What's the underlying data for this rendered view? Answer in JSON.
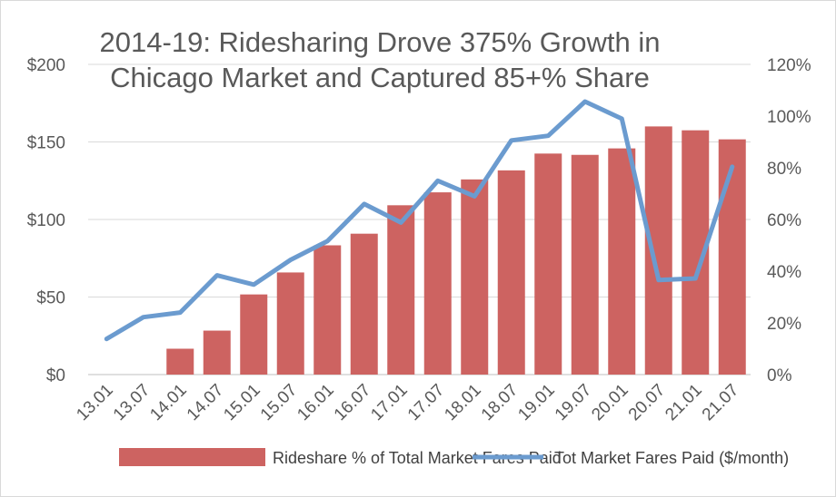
{
  "chart_data": {
    "type": "bar",
    "title": "2014-19: Ridesharing Drove 375% Growth in Chicago Market and Captured 85+% Share",
    "title_lines": [
      "2014-19: Ridesharing Drove 375% Growth in",
      "Chicago Market and Captured 85+% Share"
    ],
    "categories": [
      "13.01",
      "13.07",
      "14.01",
      "14.07",
      "15.01",
      "15.07",
      "16.01",
      "16.07",
      "17.01",
      "17.07",
      "18.01",
      "18.07",
      "19.01",
      "19.07",
      "20.01",
      "20.07",
      "21.01",
      "21.07"
    ],
    "y_left": {
      "ticks": [
        "$0",
        "$50",
        "$100",
        "$150",
        "$200"
      ],
      "ylim": [
        0,
        200
      ]
    },
    "y_right": {
      "ticks": [
        "0%",
        "20%",
        "40%",
        "60%",
        "80%",
        "100%",
        "120%"
      ],
      "ylim": [
        0,
        120
      ]
    },
    "grid": true,
    "legend_position": "bottom",
    "series": [
      {
        "name": "Rideshare % of Total Market Fares Paid",
        "type": "bar",
        "axis": "right",
        "color": "#cd6361",
        "values": [
          0,
          0,
          10,
          17,
          31,
          39.5,
          50,
          54.5,
          65.5,
          70.5,
          75.5,
          79,
          85.5,
          85,
          87.5,
          96,
          94.5,
          91
        ]
      },
      {
        "name": "Tot Market Fares Paid ($/month)",
        "type": "line",
        "axis": "left",
        "color": "#6b9bcf",
        "values": [
          23,
          37,
          40,
          64,
          58,
          74,
          86,
          110,
          98,
          125,
          115,
          151,
          154,
          176,
          165,
          61,
          62,
          134
        ]
      }
    ]
  }
}
